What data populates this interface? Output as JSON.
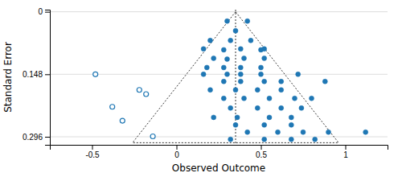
{
  "chart_data": {
    "type": "scatter",
    "x_label": "Observed Outcome",
    "y_label": "Standard Error",
    "xlim": [
      -0.75,
      1.25
    ],
    "ylim": [
      0.315,
      -0.005
    ],
    "xticks": [
      -0.5,
      0,
      0.5,
      1
    ],
    "yticks": [
      0,
      0.148,
      0.296
    ],
    "grid": true,
    "funnel": {
      "x": [
        0.35,
        -0.26,
        0.96
      ],
      "y": [
        0.0,
        0.31,
        0.31
      ],
      "line_style": "dotted"
    },
    "reference_line": {
      "x": 0.35,
      "line_style": "dotted"
    },
    "series": [
      {
        "marker": "circle",
        "x": [
          0.3,
          0.42,
          0.35,
          0.2,
          0.32,
          0.44,
          0.16,
          0.28,
          0.38,
          0.5,
          0.52,
          0.22,
          0.3,
          0.4,
          0.52,
          0.18,
          0.28,
          0.38,
          0.5,
          0.16,
          0.3,
          0.38,
          0.5,
          0.72,
          0.28,
          0.38,
          0.52,
          0.62,
          0.88,
          0.2,
          0.35,
          0.48,
          0.62,
          0.28,
          0.4,
          0.55,
          0.7,
          0.8,
          0.32,
          0.48,
          0.62,
          0.74,
          0.22,
          0.36,
          0.55,
          0.68,
          0.35,
          0.52,
          0.68,
          0.42,
          0.6,
          0.75,
          0.9,
          1.12,
          0.32,
          0.52,
          0.68,
          0.82
        ],
        "values": [
          0.022,
          0.022,
          0.045,
          0.068,
          0.068,
          0.068,
          0.088,
          0.09,
          0.088,
          0.09,
          0.088,
          0.11,
          0.112,
          0.11,
          0.11,
          0.132,
          0.132,
          0.132,
          0.132,
          0.148,
          0.148,
          0.148,
          0.148,
          0.148,
          0.165,
          0.165,
          0.165,
          0.165,
          0.165,
          0.185,
          0.185,
          0.185,
          0.185,
          0.205,
          0.205,
          0.205,
          0.205,
          0.205,
          0.228,
          0.228,
          0.228,
          0.228,
          0.25,
          0.25,
          0.25,
          0.25,
          0.268,
          0.268,
          0.268,
          0.285,
          0.285,
          0.285,
          0.285,
          0.285,
          0.302,
          0.302,
          0.302,
          0.302
        ]
      },
      {
        "marker": "open_circle",
        "x": [
          -0.48,
          -0.22,
          -0.18,
          -0.38,
          -0.32,
          -0.14
        ],
        "values": [
          0.148,
          0.185,
          0.195,
          0.225,
          0.258,
          0.295
        ]
      }
    ]
  }
}
